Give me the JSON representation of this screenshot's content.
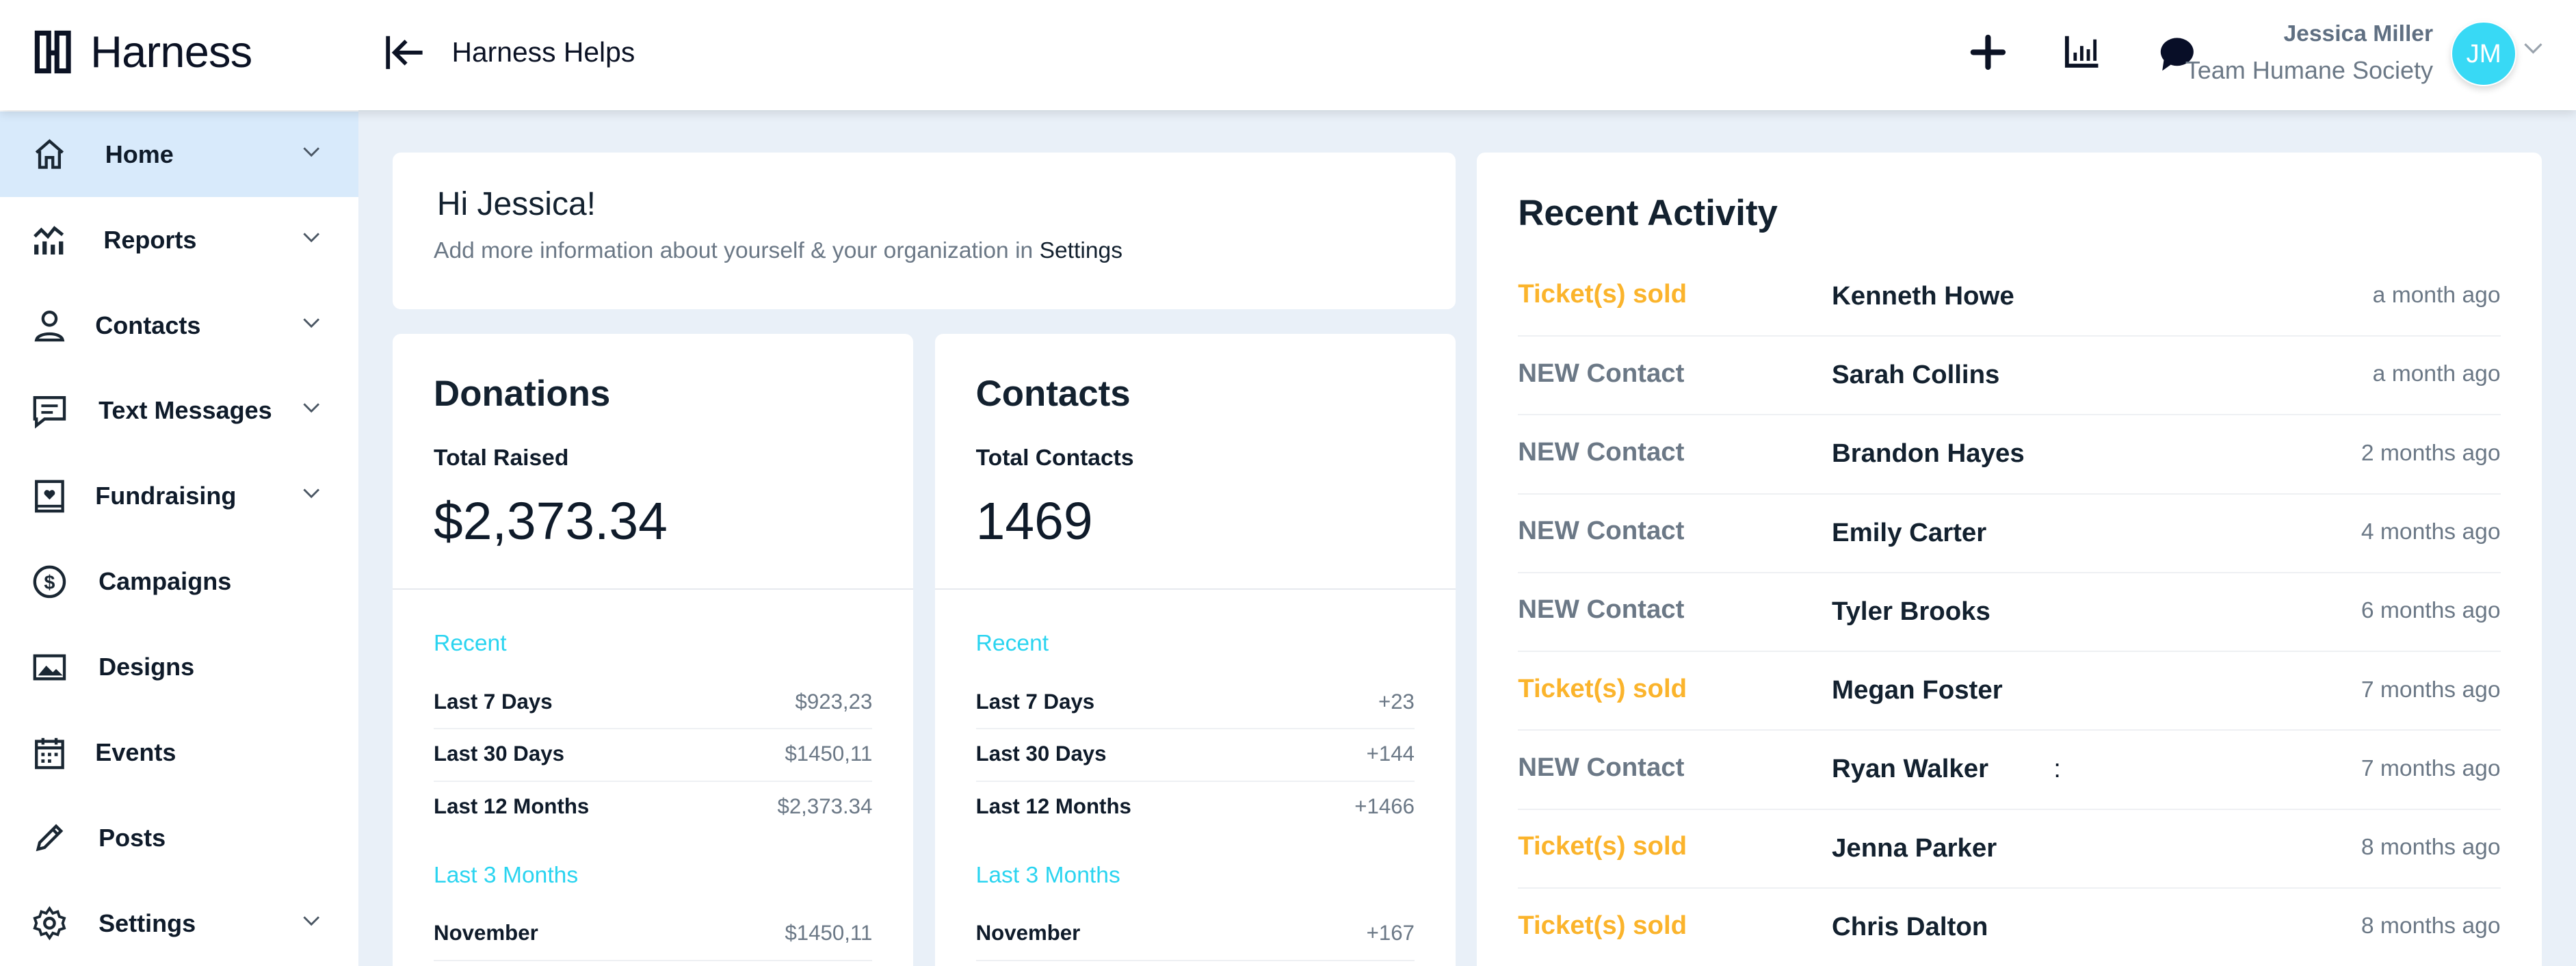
{
  "header": {
    "brand": "Harness",
    "app_title": "Harness Helps",
    "user": {
      "name": "Jessica Miller",
      "team": "Team Humane Society",
      "initials": "JM"
    },
    "icons": [
      "plus-icon",
      "bar-chart-icon",
      "chat-bubble-icon"
    ]
  },
  "colors": {
    "accent": "#2ad4f0",
    "avatar": "#38d9f5",
    "active_nav": "#d8eafb",
    "ticket": "#fbb42c",
    "contact": "#6b7886"
  },
  "sidebar": {
    "items": [
      {
        "label": "Home",
        "icon": "home-icon",
        "chevron": true,
        "active": true
      },
      {
        "label": "Reports",
        "icon": "reports-icon",
        "chevron": true
      },
      {
        "label": "Contacts",
        "icon": "user-icon",
        "chevron": true
      },
      {
        "label": "Text Messages",
        "icon": "message-icon",
        "chevron": true
      },
      {
        "label": "Fundraising",
        "icon": "fundraising-icon",
        "chevron": true
      },
      {
        "label": "Campaigns",
        "icon": "dollar-icon",
        "chevron": false
      },
      {
        "label": "Designs",
        "icon": "image-icon",
        "chevron": false
      },
      {
        "label": "Events",
        "icon": "calendar-icon",
        "chevron": false
      },
      {
        "label": "Posts",
        "icon": "pencil-icon",
        "chevron": false
      },
      {
        "label": "Settings",
        "icon": "gear-icon",
        "chevron": true
      }
    ]
  },
  "welcome": {
    "greeting": "Hi Jessica!",
    "text": "Add more information about yourself & your organization in ",
    "link": "Settings"
  },
  "donations": {
    "title": "Donations",
    "label": "Total Raised",
    "value": "$2,373.34",
    "recent_label": "Recent",
    "recent": [
      {
        "k": "Last 7 Days",
        "v": "$923,23"
      },
      {
        "k": "Last 30 Days",
        "v": "$1450,11"
      },
      {
        "k": "Last 12 Months",
        "v": "$2,373.34"
      }
    ],
    "months_label": "Last 3 Months",
    "months": [
      {
        "k": "November",
        "v": "$1450,11"
      }
    ]
  },
  "contacts": {
    "title": "Contacts",
    "label": "Total Contacts",
    "value": "1469",
    "recent_label": "Recent",
    "recent": [
      {
        "k": "Last 7 Days",
        "v": "+23"
      },
      {
        "k": "Last 30 Days",
        "v": "+144"
      },
      {
        "k": "Last 12 Months",
        "v": "+1466"
      }
    ],
    "months_label": "Last 3 Months",
    "months": [
      {
        "k": "November",
        "v": "+167"
      }
    ]
  },
  "activity": {
    "title": "Recent Activity",
    "items": [
      {
        "type": "Ticket(s) sold",
        "kind": "ticket",
        "name": "Kenneth Howe",
        "time": "a month ago"
      },
      {
        "type": "NEW Contact",
        "kind": "contact",
        "name": "Sarah Collins",
        "time": "a month ago"
      },
      {
        "type": "NEW Contact",
        "kind": "contact",
        "name": "Brandon Hayes",
        "time": "2 months ago"
      },
      {
        "type": "NEW Contact",
        "kind": "contact",
        "name": "Emily Carter",
        "time": "4 months ago"
      },
      {
        "type": "NEW Contact",
        "kind": "contact",
        "name": "Tyler Brooks",
        "time": "6 months ago"
      },
      {
        "type": "Ticket(s) sold",
        "kind": "ticket",
        "name": "Megan Foster",
        "time": "7 months ago"
      },
      {
        "type": "NEW Contact",
        "kind": "contact",
        "name": "Ryan Walker",
        "extra": ":",
        "time": "7 months ago"
      },
      {
        "type": "Ticket(s) sold",
        "kind": "ticket",
        "name": "Jenna Parker",
        "time": "8 months ago"
      },
      {
        "type": "Ticket(s) sold",
        "kind": "ticket",
        "name": "Chris Dalton",
        "time": "8 months ago"
      }
    ]
  }
}
